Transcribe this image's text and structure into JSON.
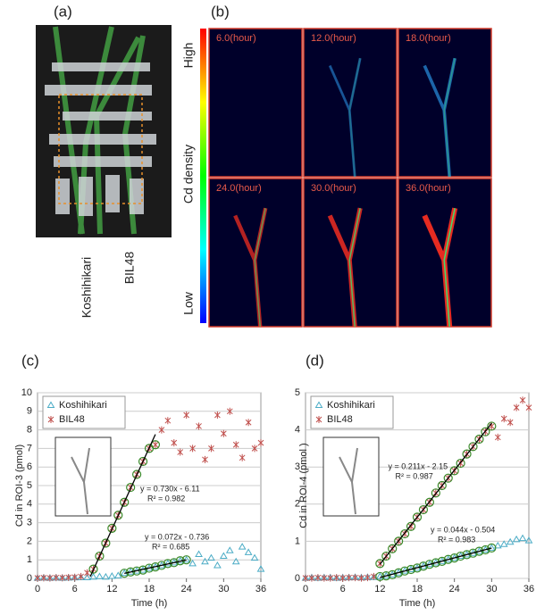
{
  "panel_a": {
    "label": "(a)",
    "varieties": [
      "Koshihikari",
      "BIL48"
    ]
  },
  "panel_b": {
    "label": "(b)",
    "scale": [
      "High",
      "Cd density",
      "Low"
    ],
    "frames": [
      "6.0(hour)",
      "12.0(hour)",
      "18.0(hour)",
      "24.0(hour)",
      "30.0(hour)",
      "36.0(hour)"
    ]
  },
  "chart_data": [
    {
      "type": "scatter",
      "label": "(c)",
      "ylabel": "Cd  in ROI-3  (pmol)",
      "xlabel": "Time (h)",
      "x": [
        0,
        1,
        2,
        3,
        4,
        5,
        6,
        7,
        8,
        9,
        10,
        11,
        12,
        13,
        14,
        15,
        16,
        17,
        18,
        19,
        20,
        21,
        22,
        23,
        24,
        25,
        26,
        27,
        28,
        29,
        30,
        31,
        32,
        33,
        34,
        35,
        36
      ],
      "xlim": [
        0,
        36
      ],
      "xticks": [
        0,
        6,
        12,
        18,
        24,
        30,
        36
      ],
      "ylim": [
        0,
        10
      ],
      "yticks": [
        0,
        1,
        2,
        3,
        4,
        5,
        6,
        7,
        8,
        9,
        10
      ],
      "series": [
        {
          "name": "Koshihikari",
          "color": "#4bacc6",
          "marker": "triangle",
          "values": [
            0.02,
            0.03,
            0.02,
            0.03,
            0.02,
            0.03,
            0.04,
            0.05,
            0.05,
            0.08,
            0.1,
            0.08,
            0.12,
            0.15,
            0.28,
            0.35,
            0.4,
            0.45,
            0.55,
            0.62,
            0.7,
            0.8,
            0.85,
            0.95,
            1.0,
            0.8,
            1.3,
            0.9,
            1.1,
            0.7,
            1.2,
            1.5,
            0.9,
            1.7,
            1.4,
            1.1,
            0.5
          ]
        },
        {
          "name": "BIL48",
          "color": "#c0504d",
          "marker": "star",
          "values": [
            0.02,
            0.03,
            0.02,
            0.04,
            0.03,
            0.05,
            0.06,
            0.1,
            0.3,
            0.5,
            1.2,
            1.9,
            2.7,
            3.4,
            4.1,
            4.9,
            5.6,
            6.3,
            7.0,
            7.2,
            8.0,
            8.5,
            7.3,
            6.8,
            8.8,
            7.0,
            8.2,
            6.4,
            7.0,
            8.8,
            7.8,
            9.0,
            7.2,
            6.5,
            8.4,
            7.0,
            7.3
          ]
        }
      ],
      "fits": [
        {
          "series": 1,
          "slope": 0.73,
          "intercept": -6.11,
          "x_range": [
            8.5,
            19
          ],
          "equation": "y = 0.730x - 6.11",
          "r2": "R² = 0.982"
        },
        {
          "series": 0,
          "slope": 0.072,
          "intercept": -0.736,
          "x_range": [
            14,
            24
          ],
          "equation": "y = 0.072x - 0.736",
          "r2": "R² = 0.685"
        }
      ]
    },
    {
      "type": "scatter",
      "label": "(d)",
      "ylabel": "Cd  in ROI-4  (pmol )",
      "xlabel": "Time (h)",
      "x": [
        0,
        1,
        2,
        3,
        4,
        5,
        6,
        7,
        8,
        9,
        10,
        11,
        12,
        13,
        14,
        15,
        16,
        17,
        18,
        19,
        20,
        21,
        22,
        23,
        24,
        25,
        26,
        27,
        28,
        29,
        30,
        31,
        32,
        33,
        34,
        35,
        36
      ],
      "xlim": [
        0,
        36
      ],
      "xticks": [
        0,
        6,
        12,
        18,
        24,
        30,
        36
      ],
      "ylim": [
        0,
        5
      ],
      "yticks": [
        0,
        1,
        2,
        3,
        4,
        5
      ],
      "series": [
        {
          "name": "Koshihikari",
          "color": "#4bacc6",
          "marker": "triangle",
          "values": [
            0.01,
            0.02,
            0.01,
            0.02,
            0.02,
            0.01,
            0.02,
            0.02,
            0.03,
            0.02,
            0.03,
            0.03,
            0.05,
            0.07,
            0.1,
            0.15,
            0.2,
            0.24,
            0.28,
            0.33,
            0.38,
            0.42,
            0.46,
            0.51,
            0.55,
            0.6,
            0.64,
            0.68,
            0.73,
            0.77,
            0.82,
            0.88,
            0.92,
            0.98,
            1.05,
            1.08,
            1.02
          ]
        },
        {
          "name": "BIL48",
          "color": "#c0504d",
          "marker": "star",
          "values": [
            0.01,
            0.01,
            0.02,
            0.01,
            0.01,
            0.02,
            0.01,
            0.02,
            0.02,
            0.01,
            0.02,
            0.05,
            0.4,
            0.6,
            0.8,
            1.0,
            1.2,
            1.4,
            1.65,
            1.85,
            2.05,
            2.3,
            2.5,
            2.7,
            2.9,
            3.1,
            3.35,
            3.55,
            3.75,
            3.95,
            4.1,
            3.8,
            4.3,
            4.2,
            4.6,
            4.8,
            4.6
          ]
        }
      ],
      "fits": [
        {
          "series": 1,
          "slope": 0.211,
          "intercept": -2.15,
          "x_range": [
            12,
            30
          ],
          "equation": "y = 0.211x - 2.15",
          "r2": "R² = 0.987"
        },
        {
          "series": 0,
          "slope": 0.044,
          "intercept": -0.504,
          "x_range": [
            12,
            30
          ],
          "equation": "y = 0.044x - 0.504",
          "r2": "R² = 0.983"
        }
      ]
    }
  ]
}
